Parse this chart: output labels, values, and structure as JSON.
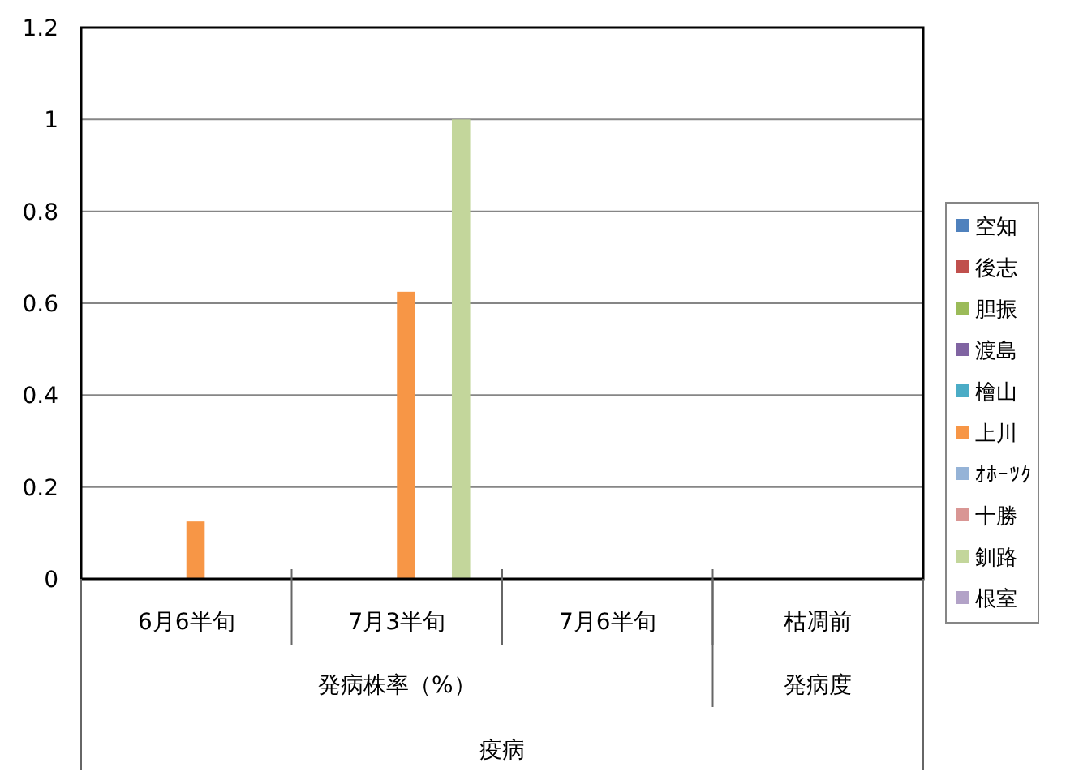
{
  "chart_data": {
    "type": "bar",
    "categories": [
      "6月6半旬",
      "7月3半旬",
      "7月6半旬",
      "枯凋前"
    ],
    "series": [
      {
        "name": "空知",
        "color": "#4f81bd",
        "values": [
          null,
          null,
          null,
          null
        ]
      },
      {
        "name": "後志",
        "color": "#c0504d",
        "values": [
          null,
          null,
          null,
          null
        ]
      },
      {
        "name": "胆振",
        "color": "#9bbb59",
        "values": [
          null,
          null,
          null,
          null
        ]
      },
      {
        "name": "渡島",
        "color": "#8064a2",
        "values": [
          null,
          null,
          null,
          null
        ]
      },
      {
        "name": "檜山",
        "color": "#4bacc6",
        "values": [
          null,
          null,
          null,
          null
        ]
      },
      {
        "name": "上川",
        "color": "#f79646",
        "values": [
          0.125,
          0.625,
          null,
          null
        ]
      },
      {
        "name": "ｵﾎｰﾂｸ",
        "color": "#95b3d7",
        "values": [
          null,
          null,
          null,
          null
        ]
      },
      {
        "name": "十勝",
        "color": "#d99694",
        "values": [
          null,
          null,
          null,
          null
        ]
      },
      {
        "name": "釧路",
        "color": "#c3d69b",
        "values": [
          null,
          1,
          null,
          null
        ]
      },
      {
        "name": "根室",
        "color": "#b2a2c7",
        "values": [
          null,
          null,
          null,
          null
        ]
      }
    ],
    "ylim": [
      0,
      1.2
    ],
    "yticks": [
      0,
      0.2,
      0.4,
      0.6,
      0.8,
      1,
      1.2
    ],
    "grid": "y",
    "legend": "right",
    "annotations": [
      "発病株率（%）",
      "発病度",
      "疫病"
    ]
  }
}
